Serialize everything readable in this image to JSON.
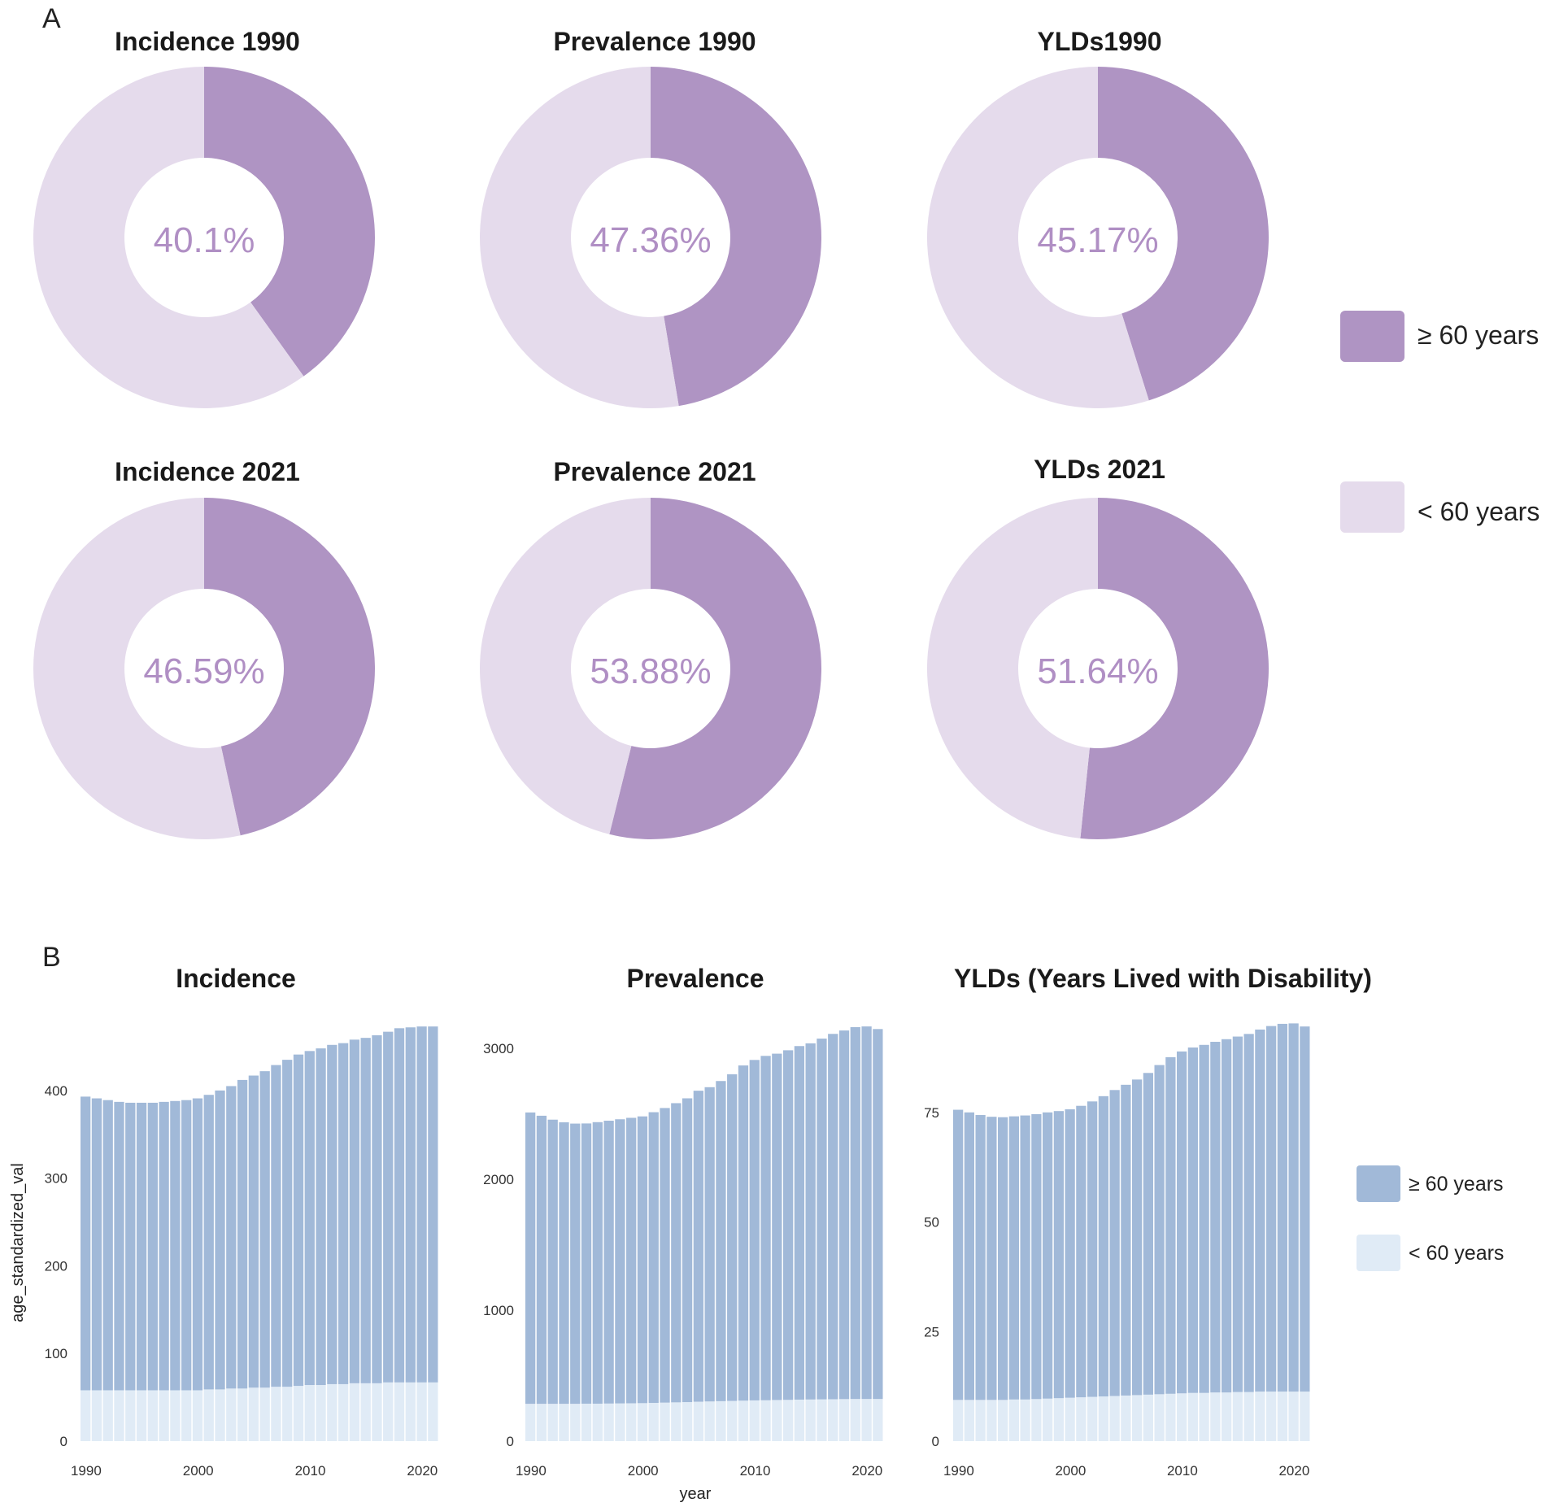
{
  "panels": {
    "a": "A",
    "b": "B"
  },
  "colors": {
    "donut_old": "#af94c3",
    "donut_young": "#e5dbec",
    "center_text": "#b08fc4",
    "bar_old": "#a1b9d8",
    "bar_young": "#e0ebf6"
  },
  "legend_a": {
    "old": "≥ 60 years",
    "young": "< 60 years"
  },
  "legend_b": {
    "old": "≥ 60 years",
    "young": "< 60 years"
  },
  "bar_axes": {
    "ylabel": "age_standardized_val",
    "xlabel": "year"
  },
  "chart_data": [
    {
      "type": "pie",
      "title": "Incidence 1990",
      "center_label": "40.1%",
      "categories": [
        "≥ 60 years",
        "< 60 years"
      ],
      "values": [
        40.1,
        59.9
      ]
    },
    {
      "type": "pie",
      "title": "Prevalence 1990",
      "center_label": "47.36%",
      "categories": [
        "≥ 60 years",
        "< 60 years"
      ],
      "values": [
        47.36,
        52.64
      ]
    },
    {
      "type": "pie",
      "title": "YLDs1990",
      "center_label": "45.17%",
      "categories": [
        "≥ 60 years",
        "< 60 years"
      ],
      "values": [
        45.17,
        54.83
      ]
    },
    {
      "type": "pie",
      "title": "Incidence 2021",
      "center_label": "46.59%",
      "categories": [
        "≥ 60 years",
        "< 60 years"
      ],
      "values": [
        46.59,
        53.41
      ]
    },
    {
      "type": "pie",
      "title": "Prevalence 2021",
      "center_label": "53.88%",
      "categories": [
        "≥ 60 years",
        "< 60 years"
      ],
      "values": [
        53.88,
        46.12
      ]
    },
    {
      "type": "pie",
      "title": "YLDs 2021",
      "center_label": "51.64%",
      "categories": [
        "≥ 60 years",
        "< 60 years"
      ],
      "values": [
        51.64,
        48.36
      ]
    },
    {
      "type": "bar",
      "stacked": true,
      "title": "Incidence",
      "xlabel": "",
      "ylabel": "age_standardized_val",
      "ylim": [
        0,
        475
      ],
      "yticks": [
        0,
        100,
        200,
        300,
        400
      ],
      "xticks": [
        1990,
        2000,
        2010,
        2020
      ],
      "x": [
        1990,
        1991,
        1992,
        1993,
        1994,
        1995,
        1996,
        1997,
        1998,
        1999,
        2000,
        2001,
        2002,
        2003,
        2004,
        2005,
        2006,
        2007,
        2008,
        2009,
        2010,
        2011,
        2012,
        2013,
        2014,
        2015,
        2016,
        2017,
        2018,
        2019,
        2020,
        2021
      ],
      "series": [
        {
          "name": "< 60 years",
          "values": [
            58,
            58,
            58,
            58,
            58,
            58,
            58,
            58,
            58,
            58,
            58,
            59,
            59,
            60,
            60,
            61,
            61,
            62,
            62,
            63,
            64,
            64,
            65,
            65,
            66,
            66,
            66,
            67,
            67,
            67,
            67,
            67
          ]
        },
        {
          "name": "≥ 60 years",
          "values": [
            335,
            333,
            331,
            329,
            328,
            328,
            328,
            329,
            330,
            331,
            333,
            336,
            341,
            345,
            352,
            356,
            361,
            367,
            373,
            378,
            381,
            384,
            387,
            389,
            392,
            394,
            397,
            400,
            404,
            405,
            406,
            406
          ]
        }
      ]
    },
    {
      "type": "bar",
      "stacked": true,
      "title": "Prevalence",
      "xlabel": "year",
      "ylabel": "",
      "ylim": [
        0,
        3180
      ],
      "yticks": [
        0,
        1000,
        2000,
        3000
      ],
      "xticks": [
        1990,
        2000,
        2010,
        2020
      ],
      "x": [
        1990,
        1991,
        1992,
        1993,
        1994,
        1995,
        1996,
        1997,
        1998,
        1999,
        2000,
        2001,
        2002,
        2003,
        2004,
        2005,
        2006,
        2007,
        2008,
        2009,
        2010,
        2011,
        2012,
        2013,
        2014,
        2015,
        2016,
        2017,
        2018,
        2019,
        2020,
        2021
      ],
      "series": [
        {
          "name": "< 60 years",
          "values": [
            285,
            285,
            285,
            285,
            285,
            286,
            286,
            287,
            288,
            289,
            290,
            292,
            294,
            296,
            298,
            301,
            303,
            305,
            307,
            309,
            311,
            312,
            314,
            315,
            317,
            318,
            319,
            320,
            321,
            322,
            322,
            322
          ]
        },
        {
          "name": "≥ 60 years",
          "values": [
            2225,
            2200,
            2170,
            2150,
            2140,
            2140,
            2150,
            2160,
            2170,
            2180,
            2190,
            2220,
            2250,
            2285,
            2320,
            2375,
            2400,
            2445,
            2495,
            2560,
            2600,
            2630,
            2645,
            2670,
            2700,
            2720,
            2755,
            2790,
            2815,
            2840,
            2845,
            2825
          ]
        }
      ]
    },
    {
      "type": "bar",
      "stacked": true,
      "title": "YLDs (Years Lived with Disability)",
      "xlabel": "",
      "ylabel": "",
      "ylim": [
        0,
        95
      ],
      "yticks": [
        0,
        25,
        50,
        75
      ],
      "xticks": [
        1990,
        2000,
        2010,
        2020
      ],
      "x": [
        1990,
        1991,
        1992,
        1993,
        1994,
        1995,
        1996,
        1997,
        1998,
        1999,
        2000,
        2001,
        2002,
        2003,
        2004,
        2005,
        2006,
        2007,
        2008,
        2009,
        2010,
        2011,
        2012,
        2013,
        2014,
        2015,
        2016,
        2017,
        2018,
        2019,
        2020,
        2021
      ],
      "series": [
        {
          "name": "< 60 years",
          "values": [
            9.4,
            9.4,
            9.4,
            9.4,
            9.4,
            9.5,
            9.5,
            9.6,
            9.7,
            9.8,
            9.9,
            10.0,
            10.1,
            10.2,
            10.3,
            10.4,
            10.5,
            10.6,
            10.7,
            10.8,
            10.9,
            11.0,
            11.0,
            11.1,
            11.1,
            11.2,
            11.2,
            11.3,
            11.3,
            11.3,
            11.3,
            11.3
          ]
        },
        {
          "name": "≥ 60 years",
          "values": [
            66.2,
            65.6,
            65.0,
            64.6,
            64.5,
            64.6,
            64.8,
            65.0,
            65.3,
            65.5,
            65.8,
            66.5,
            67.4,
            68.5,
            69.8,
            70.9,
            72.0,
            73.4,
            75.1,
            76.8,
            78.0,
            78.8,
            79.4,
            80.0,
            80.6,
            81.1,
            81.7,
            82.6,
            83.4,
            83.9,
            84.0,
            83.3
          ]
        }
      ]
    }
  ]
}
